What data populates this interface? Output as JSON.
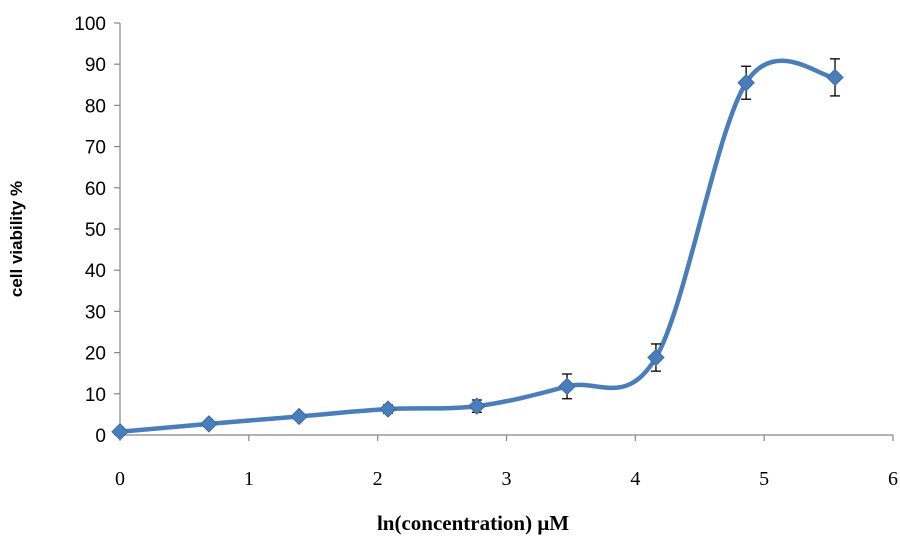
{
  "chart_data": {
    "type": "line",
    "title": "",
    "xlabel": "ln(concentration)  μM",
    "ylabel": "cell viability %",
    "xlim": [
      0,
      6
    ],
    "ylim": [
      0,
      100
    ],
    "xticks": [
      "0",
      "1",
      "2",
      "3",
      "4",
      "5",
      "6"
    ],
    "yticks": [
      "0",
      "10",
      "20",
      "30",
      "40",
      "50",
      "60",
      "70",
      "80",
      "90",
      "100"
    ],
    "grid": false,
    "legend": "none",
    "series": [
      {
        "color": "#4a7ebb",
        "marker": "diamond",
        "smooth": true,
        "x": [
          0,
          0.69,
          1.39,
          2.08,
          2.77,
          3.47,
          4.16,
          4.86,
          5.55
        ],
        "y": [
          0.8,
          2.7,
          4.5,
          6.3,
          7.0,
          11.8,
          18.8,
          85.5,
          86.8
        ],
        "error": [
          0,
          0,
          0,
          1.0,
          1.5,
          3.0,
          3.3,
          4.0,
          4.5
        ]
      }
    ]
  }
}
